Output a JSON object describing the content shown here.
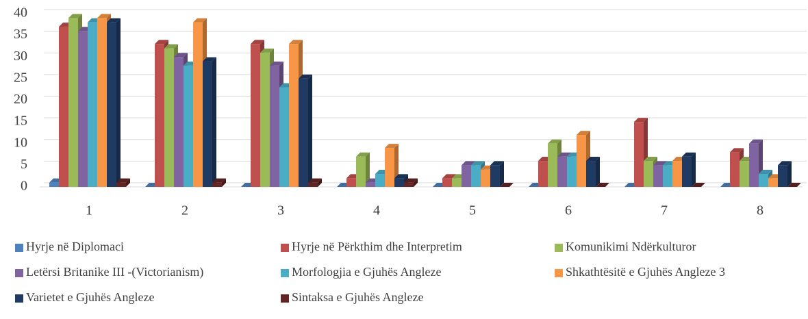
{
  "chart_data": {
    "type": "bar3d",
    "categories": [
      "1",
      "2",
      "3",
      "4",
      "5",
      "6",
      "7",
      "8"
    ],
    "series": [
      {
        "name": "Hyrje në Diplomaci",
        "color": "#4f81bd",
        "values": [
          1,
          0,
          0,
          0,
          0,
          0,
          0,
          0
        ]
      },
      {
        "name": "Hyrje në Përkthim dhe Interpretim",
        "color": "#c0504d",
        "values": [
          37,
          33,
          33,
          2,
          2,
          6,
          15,
          8
        ]
      },
      {
        "name": "Komunikimi Ndërkulturor",
        "color": "#9bbb59",
        "values": [
          39,
          32,
          31,
          7,
          2,
          10,
          6,
          6
        ]
      },
      {
        "name": "Letërsi Britanike III -(Victorianism)",
        "color": "#8064a2",
        "values": [
          36,
          30,
          28,
          1,
          5,
          7,
          5,
          10
        ]
      },
      {
        "name": "Morfologjia e Gjuhës Angleze",
        "color": "#4bacc6",
        "values": [
          38,
          28,
          23,
          3,
          5,
          7,
          5,
          3
        ]
      },
      {
        "name": "Shkathtësitë e Gjuhës Angleze 3",
        "color": "#f79646",
        "values": [
          39,
          38,
          33,
          9,
          4,
          12,
          6,
          2
        ]
      },
      {
        "name": "Varietet e Gjuhës Angleze",
        "color": "#1f3a63",
        "values": [
          38,
          29,
          25,
          2,
          5,
          6,
          7,
          5
        ]
      },
      {
        "name": "Sintaksa e Gjuhës Angleze",
        "color": "#632523",
        "values": [
          1,
          1,
          1,
          1,
          0,
          0,
          0,
          0
        ]
      }
    ],
    "ylim": [
      0,
      40
    ],
    "yticks": [
      0,
      5,
      10,
      15,
      20,
      25,
      30,
      35,
      40
    ],
    "grid": true,
    "legend": "bottom"
  }
}
